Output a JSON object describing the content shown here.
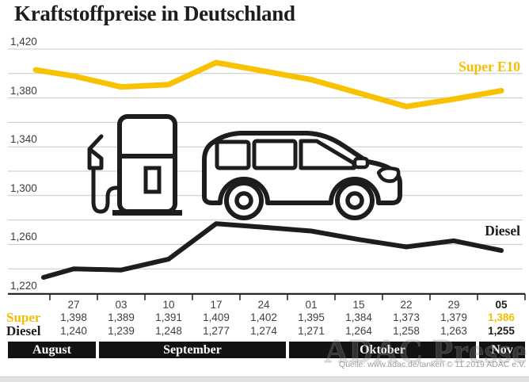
{
  "title": "Kraftstoffpreise in Deutschland",
  "watermark": "ADAC Presse",
  "source_note": "Quelle: www.adac.de/tanken   © 11.2019 ADAC e.V.",
  "colors": {
    "super_yellow": "#f9c200",
    "diesel_black": "#1d1d1b",
    "gridline_gray": "#c8c8c8",
    "text_gray": "#3f3f3f",
    "band_black": "#121212"
  },
  "table": {
    "super_label": "Super",
    "diesel_label": "Diesel"
  },
  "icons": [
    "fuel-pump-icon",
    "car-icon"
  ],
  "chart_data": {
    "type": "line",
    "title": "Kraftstoffpreise in Deutschland",
    "grid": "horizontal gridlines every 20, labels every 40",
    "legend_position": "inline labels at right end of each line",
    "y_axis": {
      "min": 1220,
      "max": 1420,
      "grid_step": 20,
      "labeled_values": [
        1420,
        1380,
        1340,
        1300,
        1260,
        1220
      ],
      "labeled_ticks": [
        "1,420",
        "1,380",
        "1,340",
        "1,300",
        "1,260",
        "1,220"
      ]
    },
    "x_labels": [
      "27",
      "03",
      "10",
      "17",
      "24",
      "01",
      "15",
      "22",
      "29",
      "05"
    ],
    "months": [
      {
        "label": "August",
        "span": [
          0,
          0
        ]
      },
      {
        "label": "September",
        "span": [
          1,
          4
        ]
      },
      {
        "label": "Oktober",
        "span": [
          5,
          8
        ]
      },
      {
        "label": "Nov",
        "span": [
          9,
          9
        ]
      }
    ],
    "series": [
      {
        "name": "Super E10",
        "color": "#f9c200",
        "lead_in": 1403,
        "values": [
          1398,
          1389,
          1391,
          1409,
          1402,
          1395,
          1384,
          1373,
          1379,
          1386
        ],
        "display": [
          "1,398",
          "1,389",
          "1,391",
          "1,409",
          "1,402",
          "1,395",
          "1,384",
          "1,373",
          "1,379",
          "1,386"
        ]
      },
      {
        "name": "Diesel",
        "color": "#1d1d1b",
        "lead_in": 1233,
        "values": [
          1240,
          1239,
          1248,
          1277,
          1274,
          1271,
          1264,
          1258,
          1263,
          1255
        ],
        "display": [
          "1,240",
          "1,239",
          "1,248",
          "1,277",
          "1,274",
          "1,271",
          "1,264",
          "1,258",
          "1,263",
          "1,255"
        ]
      }
    ]
  }
}
